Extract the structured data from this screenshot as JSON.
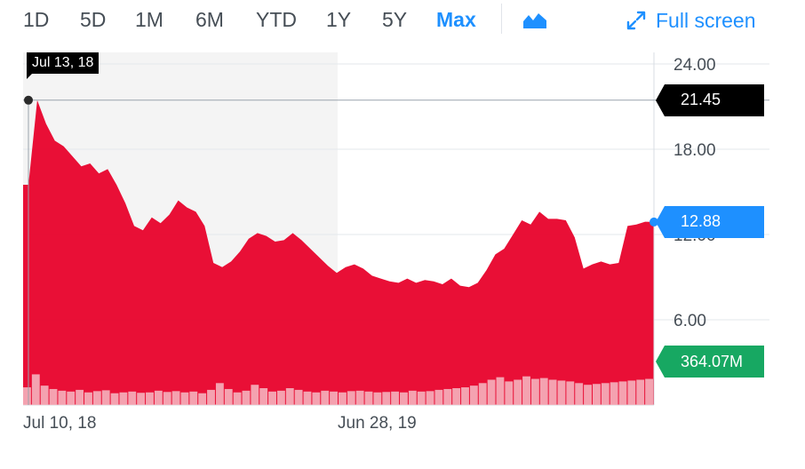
{
  "toolbar": {
    "ranges": [
      "1D",
      "5D",
      "1M",
      "6M",
      "YTD",
      "1Y",
      "5Y",
      "Max"
    ],
    "active_range": "Max",
    "chart_type_icon": "mountain-chart-icon",
    "fullscreen_label": "Full screen",
    "fullscreen_icon": "expand-arrows-icon"
  },
  "colors": {
    "price_area": "#e8072f",
    "volume": "#f6bcc6",
    "accent": "#1e90ff",
    "last_price_tag": "#1e90ff",
    "crosshair_tag": "#000000",
    "volume_tag": "#17a862"
  },
  "crosshair": {
    "date": "Jul 13, 18",
    "price_label": "21.45"
  },
  "last_price_label": "12.88",
  "volume_label": "364.07M",
  "chart_data": {
    "type": "area",
    "x_ticks": [
      "Jul 10, 18",
      "Jun 28, 19"
    ],
    "y_ticks": [
      6,
      12,
      18,
      24
    ],
    "y_tick_labels": [
      "6.00",
      "12.00",
      "18.00",
      "24.00"
    ],
    "ylim": [
      0,
      25
    ],
    "grid": true,
    "series": [
      {
        "values": [
          15.5,
          21.45,
          19.8,
          18.6,
          18.2,
          17.5,
          16.8,
          17.0,
          16.3,
          16.6,
          15.5,
          14.2,
          12.6,
          12.3,
          13.2,
          12.8,
          13.4,
          14.4,
          13.9,
          13.6,
          12.6,
          10.0,
          9.7,
          10.1,
          10.8,
          11.7,
          12.1,
          11.9,
          11.5,
          11.6,
          12.1,
          11.6,
          11.0,
          10.4,
          9.8,
          9.3,
          9.7,
          9.9,
          9.6,
          9.1,
          8.9,
          8.7,
          8.6,
          8.9,
          8.6,
          8.8,
          8.7,
          8.5,
          8.9,
          8.4,
          8.3,
          8.6,
          9.5,
          10.6,
          11.0,
          12.0,
          13.0,
          12.7,
          13.6,
          13.1,
          13.1,
          13.0,
          11.8,
          9.6,
          9.9,
          10.1,
          9.9,
          10.0,
          12.6,
          12.7,
          12.9,
          12.88
        ]
      }
    ],
    "volume": [
      210,
      364,
      230,
      190,
      170,
      160,
      180,
      150,
      165,
      175,
      140,
      150,
      160,
      145,
      150,
      170,
      155,
      165,
      150,
      160,
      140,
      180,
      260,
      190,
      150,
      170,
      240,
      200,
      160,
      170,
      200,
      180,
      160,
      150,
      170,
      160,
      150,
      165,
      170,
      160,
      150,
      155,
      160,
      150,
      170,
      160,
      165,
      180,
      190,
      200,
      210,
      230,
      260,
      300,
      330,
      280,
      300,
      340,
      310,
      320,
      300,
      290,
      280,
      260,
      240,
      250,
      260,
      270,
      280,
      290,
      300,
      310
    ],
    "volume_max": 800
  }
}
